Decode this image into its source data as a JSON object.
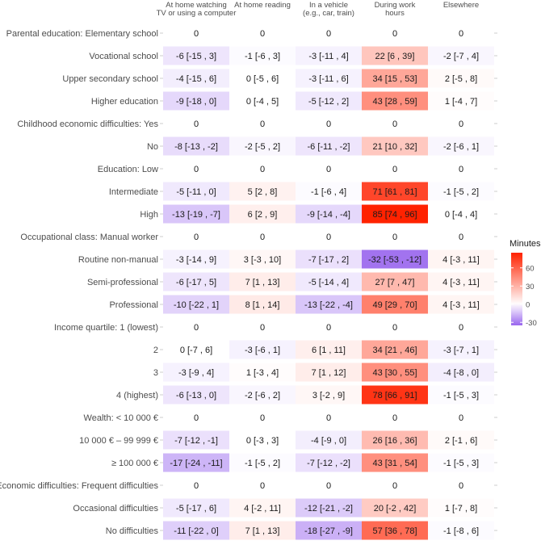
{
  "chart_data": {
    "type": "heatmap",
    "title": "",
    "columns": [
      {
        "lines": [
          "At home watching",
          "TV or using a computer"
        ]
      },
      {
        "lines": [
          "At home reading"
        ]
      },
      {
        "lines": [
          "In a vehicle",
          "(e.g., car, train)"
        ]
      },
      {
        "lines": [
          "During work",
          "hours"
        ]
      },
      {
        "lines": [
          "Elsewhere"
        ]
      }
    ],
    "rows": [
      {
        "label": "Parental education: Elementary school",
        "cells": [
          [
            0,
            null,
            null
          ],
          [
            0,
            null,
            null
          ],
          [
            0,
            null,
            null
          ],
          [
            0,
            null,
            null
          ],
          [
            0,
            null,
            null
          ]
        ]
      },
      {
        "label": "Vocational school",
        "cells": [
          [
            -6,
            -15,
            3
          ],
          [
            -1,
            -6,
            3
          ],
          [
            -3,
            -11,
            4
          ],
          [
            22,
            6,
            39
          ],
          [
            -2,
            -7,
            4
          ]
        ]
      },
      {
        "label": "Upper secondary school",
        "cells": [
          [
            -4,
            -15,
            6
          ],
          [
            0,
            -5,
            6
          ],
          [
            -3,
            -11,
            6
          ],
          [
            34,
            15,
            53
          ],
          [
            2,
            -5,
            8
          ]
        ]
      },
      {
        "label": "Higher education",
        "cells": [
          [
            -9,
            -18,
            0
          ],
          [
            0,
            -4,
            5
          ],
          [
            -5,
            -12,
            2
          ],
          [
            43,
            28,
            59
          ],
          [
            1,
            -4,
            7
          ]
        ]
      },
      {
        "label": "Childhood economic difficulties: Yes",
        "cells": [
          [
            0,
            null,
            null
          ],
          [
            0,
            null,
            null
          ],
          [
            0,
            null,
            null
          ],
          [
            0,
            null,
            null
          ],
          [
            0,
            null,
            null
          ]
        ]
      },
      {
        "label": "No",
        "cells": [
          [
            -8,
            -13,
            -2
          ],
          [
            -2,
            -5,
            2
          ],
          [
            -6,
            -11,
            -2
          ],
          [
            21,
            10,
            32
          ],
          [
            -2,
            -6,
            1
          ]
        ]
      },
      {
        "label": "Education: Low",
        "cells": [
          [
            0,
            null,
            null
          ],
          [
            0,
            null,
            null
          ],
          [
            0,
            null,
            null
          ],
          [
            0,
            null,
            null
          ],
          [
            0,
            null,
            null
          ]
        ]
      },
      {
        "label": "Intermediate",
        "cells": [
          [
            -5,
            -11,
            0
          ],
          [
            5,
            2,
            8
          ],
          [
            -1,
            -6,
            4
          ],
          [
            71,
            61,
            81
          ],
          [
            -1,
            -5,
            2
          ]
        ]
      },
      {
        "label": "High",
        "cells": [
          [
            -13,
            -19,
            -7
          ],
          [
            6,
            2,
            9
          ],
          [
            -9,
            -14,
            -4
          ],
          [
            85,
            74,
            96
          ],
          [
            0,
            -4,
            4
          ]
        ]
      },
      {
        "label": "Occupational class: Manual worker",
        "cells": [
          [
            0,
            null,
            null
          ],
          [
            0,
            null,
            null
          ],
          [
            0,
            null,
            null
          ],
          [
            0,
            null,
            null
          ],
          [
            0,
            null,
            null
          ]
        ]
      },
      {
        "label": "Routine non-manual",
        "cells": [
          [
            -3,
            -14,
            9
          ],
          [
            3,
            -3,
            10
          ],
          [
            -7,
            -17,
            2
          ],
          [
            -32,
            -53,
            -12
          ],
          [
            4,
            -3,
            11
          ]
        ]
      },
      {
        "label": "Semi-professional",
        "cells": [
          [
            -6,
            -17,
            5
          ],
          [
            7,
            1,
            13
          ],
          [
            -5,
            -14,
            4
          ],
          [
            27,
            7,
            47
          ],
          [
            4,
            -3,
            11
          ]
        ]
      },
      {
        "label": "Professional",
        "cells": [
          [
            -10,
            -22,
            1
          ],
          [
            8,
            1,
            14
          ],
          [
            -13,
            -22,
            -4
          ],
          [
            49,
            29,
            70
          ],
          [
            4,
            -3,
            11
          ]
        ]
      },
      {
        "label": "Income quartile: 1 (lowest)",
        "cells": [
          [
            0,
            null,
            null
          ],
          [
            0,
            null,
            null
          ],
          [
            0,
            null,
            null
          ],
          [
            0,
            null,
            null
          ],
          [
            0,
            null,
            null
          ]
        ]
      },
      {
        "label": "2",
        "cells": [
          [
            0,
            -7,
            6
          ],
          [
            -3,
            -6,
            1
          ],
          [
            6,
            1,
            11
          ],
          [
            34,
            21,
            46
          ],
          [
            -3,
            -7,
            1
          ]
        ]
      },
      {
        "label": "3",
        "cells": [
          [
            -3,
            -9,
            4
          ],
          [
            1,
            -3,
            4
          ],
          [
            7,
            1,
            12
          ],
          [
            43,
            30,
            55
          ],
          [
            -4,
            -8,
            0
          ]
        ]
      },
      {
        "label": "4 (highest)",
        "cells": [
          [
            -6,
            -13,
            0
          ],
          [
            -2,
            -6,
            2
          ],
          [
            3,
            -2,
            9
          ],
          [
            78,
            66,
            91
          ],
          [
            -1,
            -5,
            3
          ]
        ]
      },
      {
        "label": "Wealth: < 10 000 €",
        "cells": [
          [
            0,
            null,
            null
          ],
          [
            0,
            null,
            null
          ],
          [
            0,
            null,
            null
          ],
          [
            0,
            null,
            null
          ],
          [
            0,
            null,
            null
          ]
        ]
      },
      {
        "label": "10 000 € – 99 999 €",
        "cells": [
          [
            -7,
            -12,
            -1
          ],
          [
            0,
            -3,
            3
          ],
          [
            -4,
            -9,
            0
          ],
          [
            26,
            16,
            36
          ],
          [
            2,
            -1,
            6
          ]
        ]
      },
      {
        "label": "≥ 100 000 €",
        "cells": [
          [
            -17,
            -24,
            -11
          ],
          [
            -1,
            -5,
            2
          ],
          [
            -7,
            -12,
            -2
          ],
          [
            43,
            31,
            54
          ],
          [
            -1,
            -5,
            3
          ]
        ]
      },
      {
        "label": "Economic difficulties: Frequent difficulties",
        "cells": [
          [
            0,
            null,
            null
          ],
          [
            0,
            null,
            null
          ],
          [
            0,
            null,
            null
          ],
          [
            0,
            null,
            null
          ],
          [
            0,
            null,
            null
          ]
        ]
      },
      {
        "label": "Occasional difficulties",
        "cells": [
          [
            -5,
            -17,
            6
          ],
          [
            4,
            -2,
            11
          ],
          [
            -12,
            -21,
            -2
          ],
          [
            20,
            -2,
            42
          ],
          [
            1,
            -7,
            8
          ]
        ]
      },
      {
        "label": "No difficulties",
        "cells": [
          [
            -11,
            -22,
            0
          ],
          [
            7,
            1,
            13
          ],
          [
            -18,
            -27,
            -9
          ],
          [
            57,
            36,
            78
          ],
          [
            -1,
            -8,
            6
          ]
        ]
      }
    ],
    "legend": {
      "title": "Minutes",
      "ticks": [
        60,
        30,
        0,
        -30
      ],
      "range": [
        -35,
        85
      ],
      "low_color": "#9966ee",
      "mid_color": "#ffffff",
      "high_color": "#ff2200"
    }
  }
}
